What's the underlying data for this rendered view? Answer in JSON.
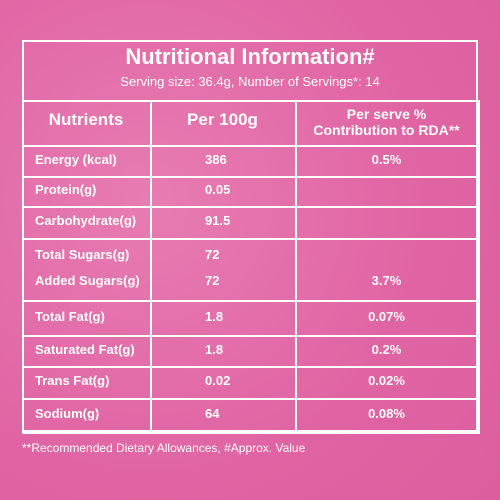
{
  "title": "Nutritional Information#",
  "subtitle": "Serving size: 36.4g, Number of Servings*: 14",
  "table": {
    "header": [
      "Nutrients",
      "Per 100g",
      "Per serve %\nContribution to RDA**"
    ],
    "rows": [
      [
        "Energy (kcal)",
        "386",
        "0.5%"
      ],
      [
        "Protein(g)",
        "0.05",
        null
      ],
      [
        "Carbohydrate(g)",
        "91.5",
        null
      ],
      [
        "Total Sugars(g)",
        "72",
        null
      ],
      [
        "Added Sugars(g)",
        "72",
        "3.7%"
      ],
      [
        "Total Fat(g)",
        "1.8",
        "0.07%"
      ],
      [
        "Saturated Fat(g)",
        "1.8",
        "0.2%"
      ],
      [
        "Trans Fat(g)",
        "0.02",
        "0.02%"
      ],
      [
        "Sodium(g)",
        "64",
        "0.08%"
      ]
    ]
  },
  "footnote": "**Recommended Dietary Allowances, #Approx. Value"
}
